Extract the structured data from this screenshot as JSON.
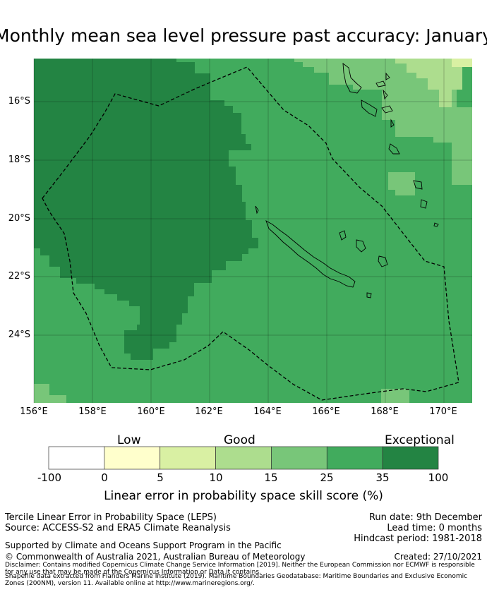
{
  "title": "Monthly mean sea level pressure past accuracy: January",
  "map": {
    "lat_labels": [
      "16°S",
      "18°S",
      "20°S",
      "22°S",
      "24°S"
    ],
    "lat_values": [
      -16,
      -18,
      -20,
      -22,
      -24
    ],
    "lon_labels": [
      "156°E",
      "158°E",
      "160°E",
      "162°E",
      "164°E",
      "166°E",
      "168°E",
      "170°E"
    ],
    "lon_values": [
      156,
      158,
      160,
      162,
      164,
      166,
      168,
      170
    ],
    "extent": {
      "lon": [
        156,
        171
      ],
      "lat": [
        -26.2,
        -14.7
      ]
    },
    "region_outline_name": "EEZ boundary"
  },
  "colorbar": {
    "categories": [
      {
        "label": "Low",
        "center_bin": 1.5
      },
      {
        "label": "Good",
        "center_bin": 3.5
      },
      {
        "label": "Exceptional",
        "center_bin": 6.7
      }
    ],
    "ticks": [
      "-100",
      "0",
      "5",
      "10",
      "15",
      "25",
      "35",
      "100"
    ],
    "bins": [
      {
        "from": -100,
        "to": 0,
        "color": "#ffffff"
      },
      {
        "from": 0,
        "to": 5,
        "color": "#ffffcc"
      },
      {
        "from": 5,
        "to": 10,
        "color": "#d9f0a3"
      },
      {
        "from": 10,
        "to": 15,
        "color": "#addd8e"
      },
      {
        "from": 15,
        "to": 25,
        "color": "#78c679"
      },
      {
        "from": 25,
        "to": 35,
        "color": "#41ab5d"
      },
      {
        "from": 35,
        "to": 100,
        "color": "#238443"
      }
    ],
    "label": "Linear error in probability space skill score (%)"
  },
  "info": {
    "line1": "Tercile Linear Error in Probability Space (LEPS)",
    "line2": "Source: ACCESS-S2 and ERA5 Climate Reanalysis",
    "run_date": "Run date: 9th December",
    "lead_time": "Lead time: 0 months",
    "hindcast": "Hindcast period: 1981-2018",
    "support": "Supported by Climate and Oceans Support Program in the Pacific",
    "copyright": "© Commonwealth of Australia 2021, Australian Bureau of Meteorology",
    "created": "Created: 27/10/2021",
    "disclaimer": "Disclaimer: Contains modified Copernicus Climate Change Service Information [2019]. Neither the European Commission nor ECMWF is responsible for any use that may be made of the Copernicus Information or Data it contains.",
    "shapefile": "Shapefile data extracted from Flanders Marine Institute (2019). Maritime Boundaries Geodatabase: Maritime Boundaries and Exclusive Economic Zones (200NM), version 11. Available online at http://www.marineregions.org/."
  }
}
